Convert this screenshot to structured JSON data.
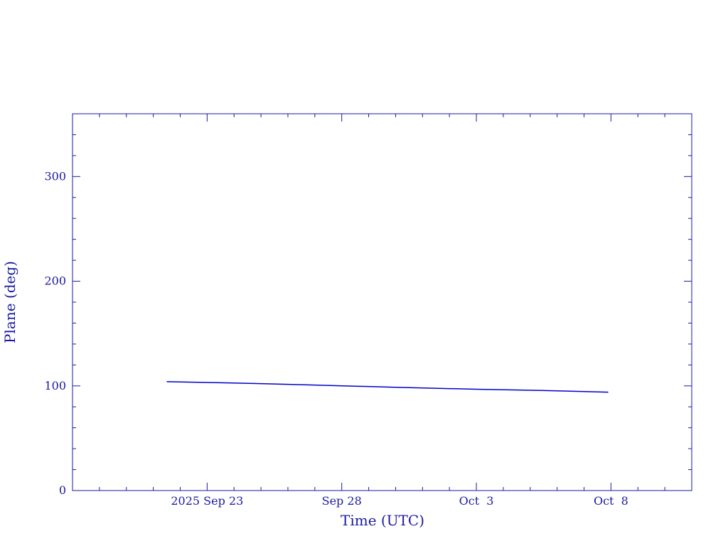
{
  "chart_data": {
    "type": "line",
    "title": "",
    "xlabel": "Time (UTC)",
    "ylabel": "Plane (deg)",
    "colors": {
      "axes": "#1a1aa0",
      "series": "#0000cc"
    },
    "xlim": [
      "2025-09-18",
      "2025-10-11"
    ],
    "ylim": [
      0,
      360
    ],
    "x_ticks": [
      {
        "date": "2025-09-23",
        "label": "2025 Sep 23"
      },
      {
        "date": "2025-09-28",
        "label": "Sep 28"
      },
      {
        "date": "2025-10-03",
        "label": "Oct  3"
      },
      {
        "date": "2025-10-08",
        "label": "Oct  8"
      }
    ],
    "y_ticks": [
      {
        "value": 0,
        "label": "0"
      },
      {
        "value": 100,
        "label": "100"
      },
      {
        "value": 200,
        "label": "200"
      },
      {
        "value": 300,
        "label": "300"
      }
    ],
    "series": [
      {
        "x": [
          "2025-09-21T12:00",
          "2025-09-24T00:00",
          "2025-09-27T00:00",
          "2025-09-30T00:00",
          "2025-10-03T00:00",
          "2025-10-06T00:00",
          "2025-10-07T21:36"
        ],
        "values": [
          104,
          102.8,
          100.8,
          98.6,
          96.8,
          95.3,
          94.0
        ]
      }
    ]
  }
}
